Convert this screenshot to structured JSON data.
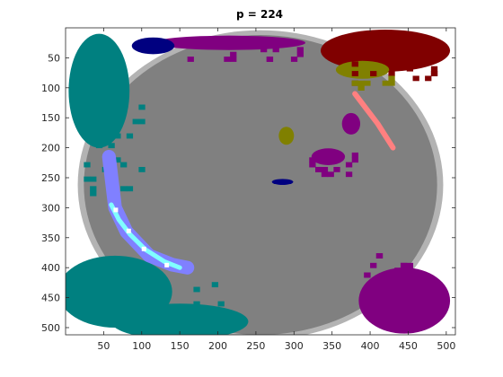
{
  "chart_data": {
    "type": "heatmap",
    "title": "p = 224",
    "xlabel": "",
    "ylabel": "",
    "xlim": [
      0,
      512
    ],
    "ylim": [
      512,
      0
    ],
    "xticks": [
      50,
      100,
      150,
      200,
      250,
      300,
      350,
      400,
      450,
      500
    ],
    "yticks": [
      50,
      100,
      150,
      200,
      250,
      300,
      350,
      400,
      450,
      500
    ],
    "grid": false,
    "colors": {
      "background": "#ffffff",
      "outside": "#ffffff",
      "gray": "#808080",
      "light_gray": "#b3b3b3",
      "teal": "#008080",
      "purple": "#800080",
      "maroon": "#800000",
      "olive": "#808000",
      "navy": "#000080",
      "salmon": "#ff8080",
      "periwinkle": "#8080ff",
      "light_cyan": "#80ffff",
      "white": "#ffffff"
    },
    "regions": [
      {
        "class": "gray",
        "shape": "ellipse",
        "cx": 256,
        "cy": 262,
        "rx": 232,
        "ry": 250
      },
      {
        "class": "teal",
        "shape": "ellipse",
        "cx": 44,
        "cy": 105,
        "rx": 40,
        "ry": 95
      },
      {
        "class": "teal",
        "shape": "ellipse",
        "cx": 65,
        "cy": 440,
        "rx": 75,
        "ry": 60
      },
      {
        "class": "teal",
        "shape": "ellipse",
        "cx": 150,
        "cy": 490,
        "rx": 90,
        "ry": 30
      },
      {
        "class": "purple",
        "shape": "ellipse",
        "cx": 445,
        "cy": 455,
        "rx": 60,
        "ry": 55
      },
      {
        "class": "purple",
        "shape": "ellipse",
        "cx": 215,
        "cy": 25,
        "rx": 100,
        "ry": 12
      },
      {
        "class": "purple",
        "shape": "ellipse",
        "cx": 345,
        "cy": 215,
        "rx": 22,
        "ry": 14
      },
      {
        "class": "purple",
        "shape": "ellipse",
        "cx": 375,
        "cy": 160,
        "rx": 12,
        "ry": 18
      },
      {
        "class": "maroon",
        "shape": "ellipse",
        "cx": 420,
        "cy": 38,
        "rx": 85,
        "ry": 35
      },
      {
        "class": "olive",
        "shape": "ellipse",
        "cx": 390,
        "cy": 70,
        "rx": 35,
        "ry": 15
      },
      {
        "class": "olive",
        "shape": "ellipse",
        "cx": 290,
        "cy": 180,
        "rx": 10,
        "ry": 15
      },
      {
        "class": "navy",
        "shape": "ellipse",
        "cx": 115,
        "cy": 30,
        "rx": 28,
        "ry": 14
      },
      {
        "class": "navy",
        "shape": "ellipse",
        "cx": 285,
        "cy": 257,
        "rx": 14,
        "ry": 5
      }
    ],
    "curves": [
      {
        "class": "periwinkle",
        "points": [
          [
            57,
            215
          ],
          [
            65,
            300
          ],
          [
            80,
            340
          ],
          [
            110,
            380
          ],
          [
            140,
            395
          ],
          [
            160,
            400
          ]
        ],
        "width": 18
      },
      {
        "class": "light_cyan",
        "points": [
          [
            60,
            295
          ],
          [
            70,
            320
          ],
          [
            85,
            345
          ],
          [
            105,
            370
          ],
          [
            130,
            390
          ],
          [
            150,
            400
          ]
        ],
        "width": 6
      },
      {
        "class": "salmon",
        "points": [
          [
            380,
            110
          ],
          [
            395,
            135
          ],
          [
            410,
            160
          ],
          [
            420,
            180
          ],
          [
            430,
            200
          ]
        ],
        "width": 7
      }
    ],
    "noise_seed": 224
  }
}
